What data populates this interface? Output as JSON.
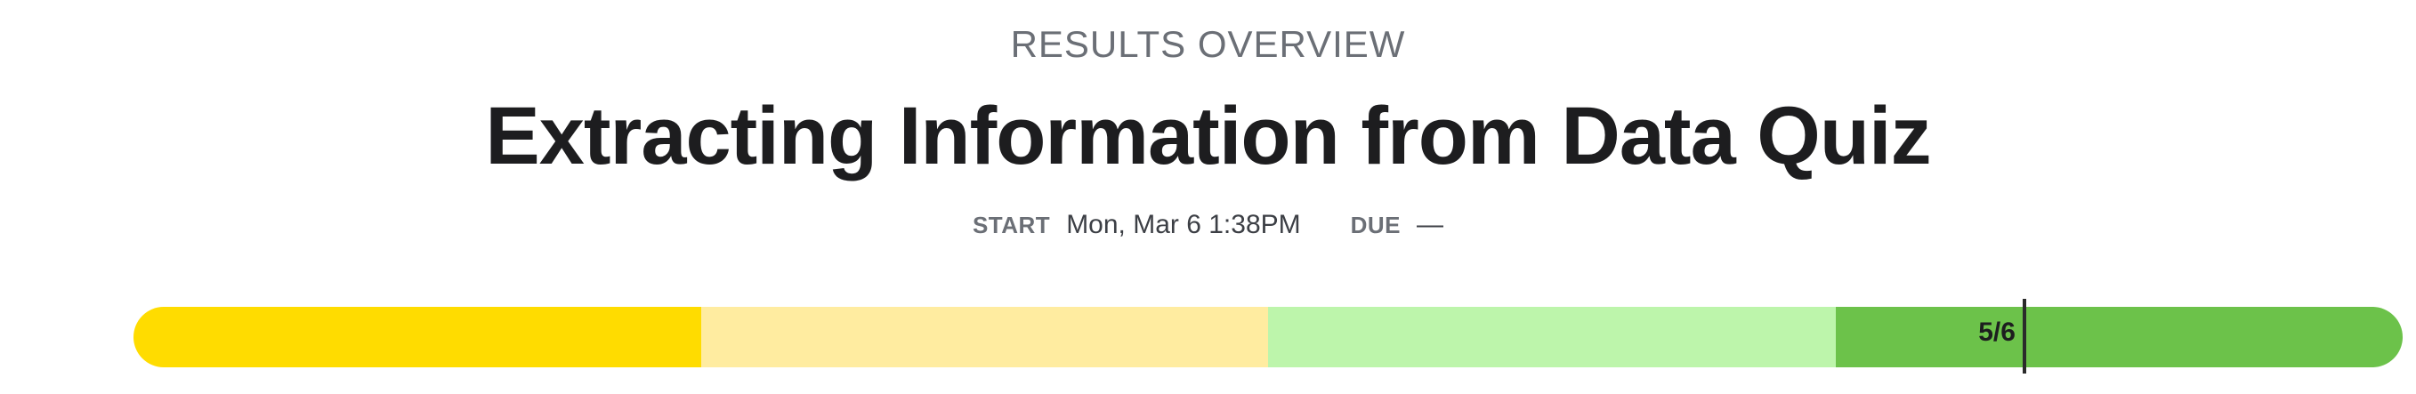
{
  "header": {
    "overline": "RESULTS OVERVIEW",
    "title": "Extracting Information from Data Quiz"
  },
  "meta": {
    "start_label": "START",
    "start_value": "Mon, Mar 6 1:38PM",
    "due_label": "DUE",
    "due_value": "—"
  },
  "progress": {
    "score_label": "5/6",
    "score_fraction": 0.8333,
    "segments": [
      {
        "color": "#ffdc00"
      },
      {
        "color": "#ffeca0"
      },
      {
        "color": "#bdf5ab"
      },
      {
        "color": "#6cc24a"
      }
    ]
  }
}
